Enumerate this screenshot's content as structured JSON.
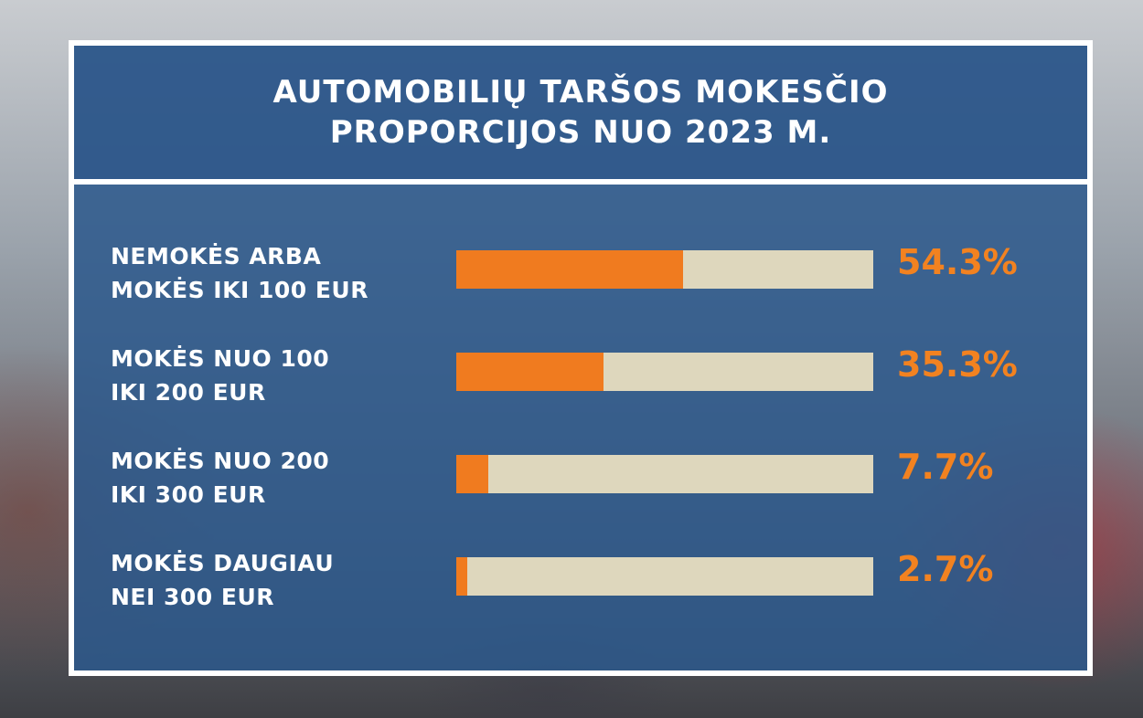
{
  "title_lines": [
    "AUTOMOBILIŲ TARŠOS MOKESČIO",
    "PROPORCIJOS NUO 2023 M."
  ],
  "colors": {
    "panel": "#2c588c",
    "bar_fill": "#f07b1f",
    "bar_track": "#ded7bd",
    "value_text": "#f28220"
  },
  "chart_data": {
    "type": "bar",
    "orientation": "horizontal",
    "title": "AUTOMOBILIŲ TARŠOS MOKESČIO PROPORCIJOS NUO 2023 M.",
    "unit": "%",
    "xlim": [
      0,
      100
    ],
    "grid": false,
    "categories": [
      [
        "NEMOKĖS ARBA",
        "MOKĖS IKI 100 EUR"
      ],
      [
        "MOKĖS NUO 100",
        "IKI 200 EUR"
      ],
      [
        "MOKĖS NUO 200",
        "IKI 300 EUR"
      ],
      [
        "MOKĖS DAUGIAU",
        "NEI 300 EUR"
      ]
    ],
    "values": [
      54.3,
      35.3,
      7.7,
      2.7
    ],
    "value_labels": [
      "54.3%",
      "35.3%",
      "7.7%",
      "2.7%"
    ]
  }
}
